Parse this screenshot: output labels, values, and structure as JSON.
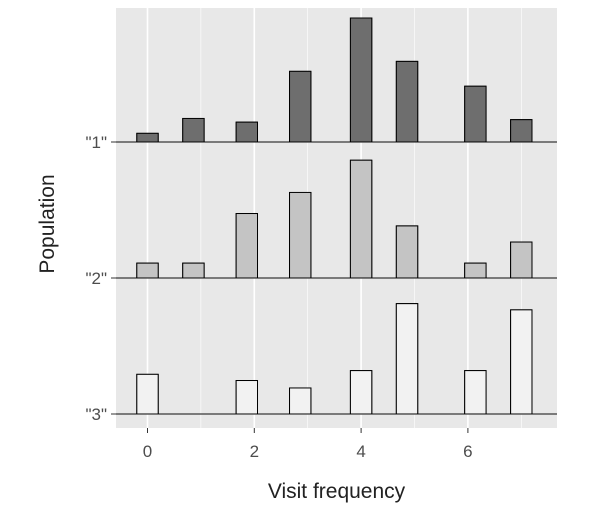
{
  "chart_data": {
    "type": "ridgeline-histogram",
    "title": "",
    "xlabel": "Visit frequency",
    "ylabel": "Population",
    "xlim": [
      -0.6,
      7.6
    ],
    "x_ticks": [
      0,
      2,
      4,
      6
    ],
    "x_tick_labels": [
      "0",
      "2",
      "4",
      "6"
    ],
    "bin_width": 0.4,
    "grid": true,
    "background": "#e8e8e8",
    "series": [
      {
        "name": "\"1\"",
        "fill": "#6e6e6e",
        "bins": [
          {
            "x": 0.0,
            "value": 0.07
          },
          {
            "x": 0.86,
            "value": 0.19
          },
          {
            "x": 1.86,
            "value": 0.16
          },
          {
            "x": 2.86,
            "value": 0.57
          },
          {
            "x": 4.0,
            "value": 1.0
          },
          {
            "x": 4.86,
            "value": 0.65
          },
          {
            "x": 6.14,
            "value": 0.45
          },
          {
            "x": 7.0,
            "value": 0.18
          }
        ]
      },
      {
        "name": "\"2\"",
        "fill": "#c4c4c4",
        "bins": [
          {
            "x": 0.0,
            "value": 0.12
          },
          {
            "x": 0.86,
            "value": 0.12
          },
          {
            "x": 1.86,
            "value": 0.52
          },
          {
            "x": 2.86,
            "value": 0.69
          },
          {
            "x": 4.0,
            "value": 0.95
          },
          {
            "x": 4.86,
            "value": 0.42
          },
          {
            "x": 6.14,
            "value": 0.12
          },
          {
            "x": 7.0,
            "value": 0.29
          }
        ]
      },
      {
        "name": "\"3\"",
        "fill": "#f2f2f2",
        "bins": [
          {
            "x": 0.0,
            "value": 0.32
          },
          {
            "x": 1.86,
            "value": 0.27
          },
          {
            "x": 2.86,
            "value": 0.21
          },
          {
            "x": 4.0,
            "value": 0.35
          },
          {
            "x": 4.86,
            "value": 0.89
          },
          {
            "x": 6.14,
            "value": 0.35
          },
          {
            "x": 7.0,
            "value": 0.84
          }
        ]
      }
    ]
  }
}
